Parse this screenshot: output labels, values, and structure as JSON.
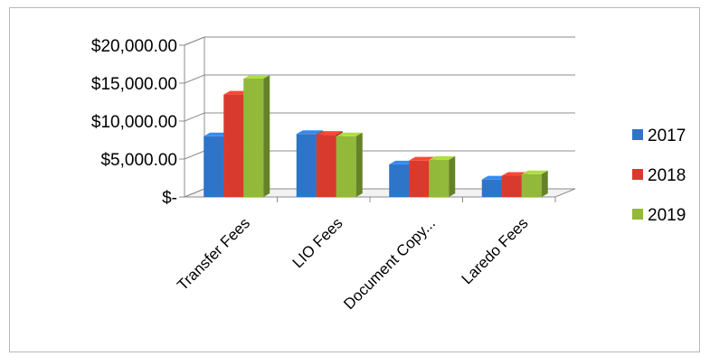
{
  "chart_data": {
    "type": "bar",
    "categories": [
      "Transfer Fees",
      "LIO Fees",
      "Document Copy...",
      "Laredo Fees"
    ],
    "series": [
      {
        "name": "2017",
        "color": "#2e74c8",
        "values": [
          8000,
          8300,
          4300,
          2300
        ]
      },
      {
        "name": "2018",
        "color": "#d93a2e",
        "values": [
          13500,
          8200,
          4800,
          2800
        ]
      },
      {
        "name": "2019",
        "color": "#92b93a",
        "values": [
          15600,
          8000,
          4900,
          3000
        ]
      }
    ],
    "y_ticks": [
      "$20,000.00",
      "$15,000.00",
      "$10,000.00",
      "$5,000.00",
      "$-"
    ],
    "ylim": [
      0,
      20000
    ],
    "grid": true,
    "legend_position": "right",
    "style": "3d-clustered-column"
  }
}
